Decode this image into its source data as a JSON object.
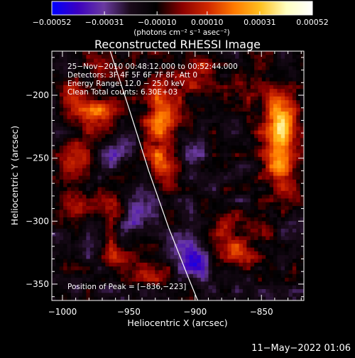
{
  "chart_data": {
    "type": "heatmap",
    "title": "Reconstructed RHESSI Image",
    "xlabel": "Heliocentric X (arcsec)",
    "ylabel": "Heliocentric Y (arcsec)",
    "xlim": [
      -1008,
      -818
    ],
    "ylim": [
      -363,
      -165
    ],
    "x_ticks": [
      -1000,
      -950,
      -900,
      -850
    ],
    "y_ticks": [
      -200,
      -250,
      -300,
      -350
    ],
    "x_tick_labels": [
      "−1000",
      "−950",
      "−900",
      "−850"
    ],
    "y_tick_labels": [
      "−200",
      "−250",
      "−300",
      "−350"
    ],
    "colorbar": {
      "range": [
        -0.00052,
        0.00052
      ],
      "ticks": [
        -0.00052,
        -0.00031,
        -0.0001,
        0.0001,
        0.00031,
        0.00052
      ],
      "tick_labels": [
        "−0.00052",
        "−0.00031",
        "−0.00010",
        "0.00010",
        "0.00031",
        "0.00052"
      ],
      "unit_label": "(photons cm⁻² s⁻¹ asec⁻²)",
      "colormap": [
        "#0000ff",
        "#3c00c0",
        "#6a3aa0",
        "#1a0a1a",
        "#000000",
        "#8a0000",
        "#d02800",
        "#ff7a00",
        "#ffc020",
        "#ffffc0",
        "#ffffff"
      ]
    },
    "info_lines": [
      "25−Nov−2010 00:48:12.000 to 00:52:44.000",
      "Detectors: 3F 4F 5F 6F 7F 8F, Att 0",
      "Energy Range: 12.0 − 25.0 keV",
      "Clean     Total counts: 6.30E+03"
    ],
    "peak_label": "Position of Peak = [−836,−223]",
    "peak": [
      -836,
      -223
    ],
    "limb": [
      [
        -964,
        -165
      ],
      [
        -950,
        -210
      ],
      [
        -935,
        -260
      ],
      [
        -920,
        -305
      ],
      [
        -905,
        -345
      ],
      [
        -898,
        -363
      ]
    ],
    "sources": [
      {
        "x": -836,
        "y": -223,
        "amp": 0.00052,
        "sx": 9,
        "sy": 18
      },
      {
        "x": -835,
        "y": -262,
        "amp": 0.0003,
        "sx": 8,
        "sy": 12
      },
      {
        "x": -925,
        "y": -215,
        "amp": 0.00034,
        "sx": 9,
        "sy": 24
      },
      {
        "x": -922,
        "y": -260,
        "amp": 0.00026,
        "sx": 9,
        "sy": 14
      },
      {
        "x": -975,
        "y": -215,
        "amp": 0.0003,
        "sx": 13,
        "sy": 10
      },
      {
        "x": -990,
        "y": -250,
        "amp": 0.00022,
        "sx": 8,
        "sy": 10
      },
      {
        "x": -985,
        "y": -285,
        "amp": 0.00014,
        "sx": 10,
        "sy": 8
      },
      {
        "x": -962,
        "y": -290,
        "amp": 0.00022,
        "sx": 6,
        "sy": 9
      },
      {
        "x": -960,
        "y": -325,
        "amp": 0.00017,
        "sx": 8,
        "sy": 8
      },
      {
        "x": -870,
        "y": -325,
        "amp": 0.00026,
        "sx": 10,
        "sy": 10
      },
      {
        "x": -880,
        "y": -300,
        "amp": 0.00018,
        "sx": 8,
        "sy": 9
      },
      {
        "x": -850,
        "y": -305,
        "amp": 0.00018,
        "sx": 7,
        "sy": 10
      },
      {
        "x": -935,
        "y": -340,
        "amp": 0.0002,
        "sx": 11,
        "sy": 7
      },
      {
        "x": -895,
        "y": -185,
        "amp": 0.00022,
        "sx": 9,
        "sy": 12
      },
      {
        "x": -860,
        "y": -190,
        "amp": 0.00018,
        "sx": 8,
        "sy": 10
      },
      {
        "x": -965,
        "y": -180,
        "amp": 0.00014,
        "sx": 10,
        "sy": 9
      },
      {
        "x": -995,
        "y": -195,
        "amp": 0.00016,
        "sx": 6,
        "sy": 8
      },
      {
        "x": -940,
        "y": -290,
        "amp": -0.0002,
        "sx": 10,
        "sy": 12
      },
      {
        "x": -900,
        "y": -330,
        "amp": -0.00026,
        "sx": 10,
        "sy": 10
      },
      {
        "x": -905,
        "y": -250,
        "amp": -0.00016,
        "sx": 8,
        "sy": 12
      },
      {
        "x": -960,
        "y": -245,
        "amp": -0.00012,
        "sx": 8,
        "sy": 10
      }
    ],
    "background_level": -0.00015,
    "noise_level": 0.00011,
    "grid": false
  },
  "footer": {
    "timestamp": "11−May−2022 01:06"
  }
}
